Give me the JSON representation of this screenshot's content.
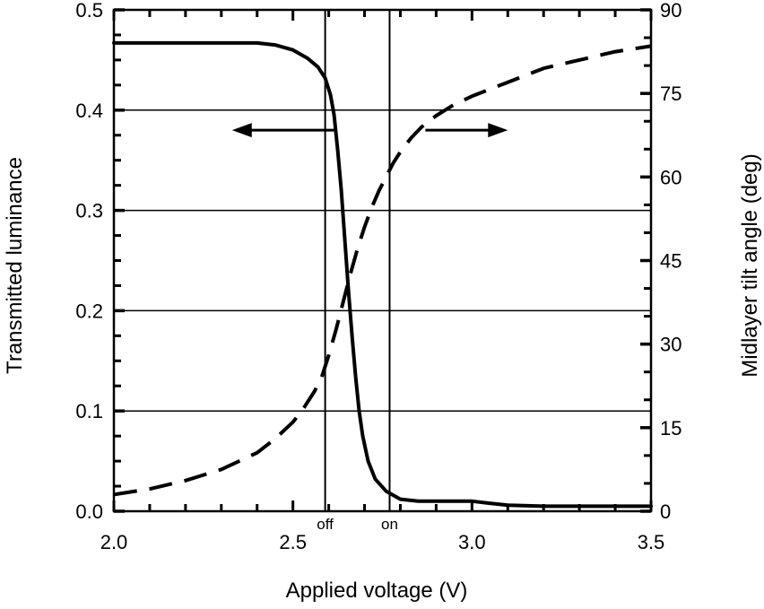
{
  "chart_data": {
    "type": "line",
    "xlabel": "Applied voltage (V)",
    "ylabel_left": "Transmitted luminance",
    "ylabel_right": "Midlayer tilt angle (deg)",
    "xlim": [
      2.0,
      3.5
    ],
    "ylim_left": [
      0.0,
      0.5
    ],
    "ylim_right": [
      0,
      90
    ],
    "x_ticks": [
      "2.0",
      "2.5",
      "3.0",
      "3.5"
    ],
    "y_left_ticks": [
      "0.0",
      "0.1",
      "0.2",
      "0.3",
      "0.4",
      "0.5"
    ],
    "y_right_ticks": [
      "0",
      "15",
      "30",
      "45",
      "60",
      "75",
      "90"
    ],
    "grid": "horizontal",
    "vertical_markers": [
      {
        "x": 2.59,
        "label": "off"
      },
      {
        "x": 2.77,
        "label": "on"
      }
    ],
    "series": [
      {
        "axis": "left",
        "style": "solid",
        "x": [
          2.0,
          2.1,
          2.2,
          2.3,
          2.4,
          2.45,
          2.5,
          2.54,
          2.57,
          2.59,
          2.605,
          2.615,
          2.625,
          2.635,
          2.645,
          2.655,
          2.665,
          2.675,
          2.685,
          2.695,
          2.71,
          2.73,
          2.76,
          2.8,
          2.85,
          2.9,
          2.95,
          3.0,
          3.05,
          3.1,
          3.2,
          3.3,
          3.4,
          3.5
        ],
        "values": [
          0.467,
          0.467,
          0.467,
          0.467,
          0.467,
          0.465,
          0.46,
          0.452,
          0.443,
          0.432,
          0.415,
          0.395,
          0.36,
          0.32,
          0.27,
          0.22,
          0.175,
          0.135,
          0.1,
          0.075,
          0.05,
          0.032,
          0.02,
          0.012,
          0.01,
          0.01,
          0.01,
          0.01,
          0.008,
          0.006,
          0.005,
          0.005,
          0.005,
          0.005
        ]
      },
      {
        "axis": "right",
        "style": "dashed",
        "x": [
          2.0,
          2.1,
          2.2,
          2.3,
          2.4,
          2.45,
          2.5,
          2.53,
          2.56,
          2.58,
          2.6,
          2.62,
          2.64,
          2.66,
          2.68,
          2.7,
          2.72,
          2.74,
          2.76,
          2.78,
          2.8,
          2.83,
          2.86,
          2.9,
          2.95,
          3.0,
          3.1,
          3.2,
          3.3,
          3.4,
          3.5
        ],
        "values": [
          3,
          4,
          5.5,
          7.5,
          10.5,
          13,
          16,
          18.5,
          21.5,
          24,
          28,
          32.5,
          37.5,
          42.5,
          47,
          51,
          54.5,
          57.5,
          60,
          62.5,
          64.5,
          67,
          69,
          71,
          73,
          74.5,
          77,
          79.5,
          81,
          82.5,
          83.5
        ]
      }
    ],
    "annotations": [
      {
        "type": "arrow",
        "direction": "left",
        "points_to": "left-axis",
        "from": [
          2.62,
          0.38
        ],
        "to": [
          2.33,
          0.38
        ]
      },
      {
        "type": "arrow",
        "direction": "right",
        "points_to": "right-axis",
        "from": [
          2.87,
          0.38
        ],
        "to": [
          3.1,
          0.38
        ]
      }
    ]
  }
}
